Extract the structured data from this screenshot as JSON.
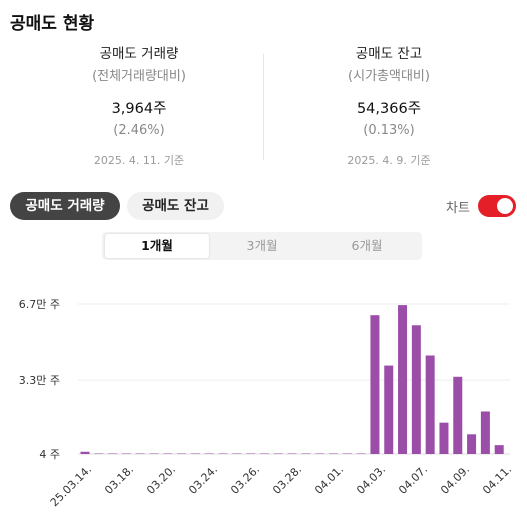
{
  "title": "공매도 현황",
  "left_stat": {
    "label": "공매도 거래량",
    "sub": "(전체거래량대비)",
    "value": "3,964주",
    "pct": "(2.46%)",
    "date": "2025. 4. 11. 기준"
  },
  "right_stat": {
    "label": "공매도 잔고",
    "sub": "(시가총액대비)",
    "value": "54,366주",
    "pct": "(0.13%)",
    "date": "2025. 4. 9. 기준"
  },
  "tabs": [
    {
      "label": "공매도 거래량",
      "active": true
    },
    {
      "label": "공매도 잔고",
      "active": false
    }
  ],
  "chart_toggle": {
    "label": "차트",
    "on": true,
    "color": "#e51f28"
  },
  "periods": [
    {
      "label": "1개월",
      "active": true
    },
    {
      "label": "3개월",
      "active": false
    },
    {
      "label": "6개월",
      "active": false
    }
  ],
  "chart_data": {
    "type": "bar",
    "bar_color": "#9b4ea8",
    "y_ticks": [
      {
        "label": "6.7만 주",
        "value": 67000
      },
      {
        "label": "3.3만 주",
        "value": 33000
      },
      {
        "label": "4 주",
        "value": 4
      }
    ],
    "ylim": [
      4,
      67000
    ],
    "x_ticks": [
      "25.03.14.",
      "03.18.",
      "03.20.",
      "03.24.",
      "03.26.",
      "03.28.",
      "04.01.",
      "04.03.",
      "04.07.",
      "04.09.",
      "04.11."
    ],
    "values": [
      1000,
      4,
      4,
      4,
      4,
      4,
      4,
      4,
      4,
      4,
      4,
      4,
      4,
      4,
      4,
      4,
      4,
      4,
      4,
      4,
      4,
      62000,
      39500,
      66500,
      57500,
      44000,
      14000,
      34500,
      8800,
      19000,
      3964
    ]
  }
}
